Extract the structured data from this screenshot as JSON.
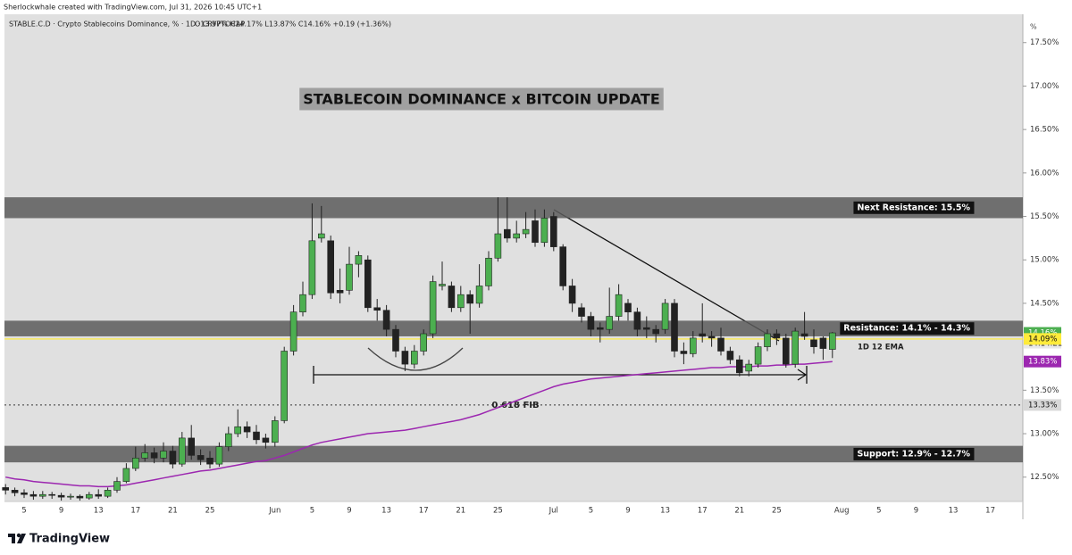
{
  "header": "Sherlockwhale created with TradingView.com, Jul 31, 2026 10:45 UTC+1",
  "footer": "TradingView",
  "chart_data": {
    "type": "candlestick",
    "symbol_text": "STABLE.C.D · Crypto Stablecoins Dominance, % · 1D · CRYPTOCAP",
    "ohlc_text": "O13.97% H14.17% L13.87% C14.16% +0.19 (+1.36%)",
    "title": "STABLECOIN DOMINANCE x BITCOIN UPDATE",
    "y_unit": "%",
    "up_color": "#4caf50",
    "down_color": "#222222",
    "categories": [
      null,
      null,
      "5",
      null,
      null,
      null,
      "9",
      null,
      null,
      null,
      "13",
      null,
      null,
      null,
      "17",
      null,
      null,
      null,
      "21",
      null,
      null,
      null,
      "25",
      null,
      null,
      null,
      null,
      null,
      null,
      "Jun",
      null,
      null,
      null,
      "5",
      null,
      null,
      null,
      "9",
      null,
      null,
      null,
      "13",
      null,
      null,
      null,
      "17",
      null,
      null,
      null,
      "21",
      null,
      null,
      null,
      "25",
      null,
      null,
      null,
      null,
      null,
      "Jul",
      null,
      null,
      null,
      "5",
      null,
      null,
      null,
      "9",
      null,
      null,
      null,
      "13",
      null,
      null,
      null,
      "17",
      null,
      null,
      null,
      "21",
      null,
      null,
      null,
      "25",
      null,
      null,
      null,
      null,
      null,
      null,
      "Aug",
      null,
      null,
      null,
      "5",
      null,
      null,
      null,
      "9",
      null,
      null,
      null,
      "13",
      null,
      null,
      null,
      "17",
      null,
      null,
      null
    ],
    "open": [
      12.38,
      12.35,
      12.32,
      12.3,
      12.28,
      12.3,
      12.29,
      12.27,
      12.28,
      12.26,
      12.3,
      12.28,
      12.35,
      12.45,
      12.6,
      12.72,
      12.78,
      12.72,
      12.8,
      12.65,
      12.95,
      12.75,
      12.72,
      12.65,
      12.85,
      13.0,
      13.08,
      13.02,
      12.95,
      12.9,
      13.15,
      13.95,
      14.4,
      14.6,
      15.25,
      15.22,
      14.65,
      14.65,
      14.95,
      15.0,
      14.45,
      14.42,
      14.2,
      13.95,
      13.8,
      13.95,
      14.15,
      14.7,
      14.7,
      14.45,
      14.6,
      14.5,
      14.7,
      15.02,
      15.35,
      15.25,
      15.3,
      15.45,
      15.2,
      15.5,
      15.15,
      14.7,
      14.45,
      14.35,
      14.22,
      14.2,
      14.35,
      14.5,
      14.4,
      14.22,
      14.2,
      14.2,
      14.5,
      13.95,
      13.92,
      14.15,
      14.12,
      14.1,
      13.95,
      13.85,
      13.72,
      13.8,
      14.0,
      14.15,
      14.1,
      13.8,
      14.15,
      14.08,
      14.1,
      13.97,
      null,
      null,
      null,
      null,
      null,
      null,
      null,
      null,
      null,
      null,
      null,
      null,
      null,
      null,
      null,
      null,
      null,
      null,
      null,
      null
    ],
    "high": [
      12.42,
      12.38,
      12.36,
      12.34,
      12.34,
      12.33,
      12.32,
      12.31,
      12.3,
      12.33,
      12.36,
      12.38,
      12.5,
      12.66,
      12.85,
      12.88,
      12.84,
      12.9,
      12.86,
      13.02,
      13.1,
      12.82,
      12.8,
      12.9,
      13.08,
      13.28,
      13.14,
      13.1,
      13.0,
      13.2,
      14.0,
      14.48,
      14.75,
      15.65,
      15.62,
      15.28,
      14.9,
      15.15,
      15.1,
      15.05,
      14.55,
      14.48,
      14.25,
      14.0,
      14.02,
      14.2,
      14.82,
      14.98,
      14.75,
      14.7,
      14.65,
      14.95,
      15.1,
      15.72,
      15.72,
      15.45,
      15.55,
      15.58,
      15.58,
      15.55,
      15.18,
      14.78,
      14.5,
      14.4,
      14.28,
      14.68,
      14.72,
      14.55,
      14.45,
      14.35,
      14.25,
      14.55,
      14.55,
      14.05,
      14.18,
      14.5,
      14.18,
      14.22,
      14.0,
      13.9,
      13.85,
      14.05,
      14.2,
      14.2,
      14.15,
      14.22,
      14.4,
      14.2,
      14.12,
      14.17,
      null,
      null,
      null,
      null,
      null,
      null,
      null,
      null,
      null,
      null,
      null,
      null,
      null,
      null,
      null,
      null,
      null,
      null,
      null,
      null
    ],
    "low": [
      12.3,
      12.28,
      12.26,
      12.24,
      12.25,
      12.25,
      12.23,
      12.24,
      12.23,
      12.24,
      12.25,
      12.26,
      12.32,
      12.43,
      12.57,
      12.68,
      12.66,
      12.67,
      12.6,
      12.62,
      12.7,
      12.64,
      12.6,
      12.62,
      12.8,
      12.96,
      12.95,
      12.88,
      12.83,
      12.85,
      13.12,
      13.9,
      14.35,
      14.55,
      15.2,
      14.55,
      14.5,
      14.6,
      14.8,
      14.4,
      14.3,
      14.12,
      13.88,
      13.72,
      13.75,
      13.9,
      14.1,
      14.65,
      14.4,
      14.4,
      14.15,
      14.45,
      14.65,
      14.98,
      15.2,
      15.2,
      15.25,
      15.15,
      15.15,
      15.1,
      14.65,
      14.4,
      14.28,
      14.12,
      14.05,
      14.15,
      14.3,
      14.3,
      14.12,
      14.1,
      14.05,
      14.15,
      13.88,
      13.8,
      13.88,
      14.05,
      14.0,
      13.9,
      13.8,
      13.66,
      13.66,
      13.76,
      13.95,
      14.02,
      13.76,
      13.76,
      14.08,
      13.92,
      13.85,
      13.87,
      null,
      null,
      null,
      null,
      null,
      null,
      null,
      null,
      null,
      null,
      null,
      null,
      null,
      null,
      null,
      null,
      null,
      null,
      null,
      null
    ],
    "close": [
      12.35,
      12.32,
      12.3,
      12.28,
      12.3,
      12.29,
      12.27,
      12.28,
      12.26,
      12.3,
      12.28,
      12.35,
      12.45,
      12.6,
      12.72,
      12.78,
      12.72,
      12.8,
      12.65,
      12.95,
      12.75,
      12.7,
      12.65,
      12.85,
      13.0,
      13.08,
      13.02,
      12.93,
      12.9,
      13.15,
      13.95,
      14.4,
      14.6,
      15.22,
      15.3,
      14.62,
      14.62,
      14.95,
      15.05,
      14.45,
      14.42,
      14.2,
      13.95,
      13.8,
      13.95,
      14.15,
      14.75,
      14.72,
      14.45,
      14.6,
      14.5,
      14.7,
      15.02,
      15.3,
      15.25,
      15.3,
      15.35,
      15.2,
      15.48,
      15.15,
      14.7,
      14.5,
      14.35,
      14.2,
      14.2,
      14.35,
      14.6,
      14.4,
      14.2,
      14.2,
      14.15,
      14.5,
      13.95,
      13.92,
      14.1,
      14.12,
      14.1,
      13.95,
      13.85,
      13.7,
      13.8,
      14.0,
      14.15,
      14.1,
      13.8,
      14.18,
      14.12,
      14.0,
      13.98,
      14.16,
      null,
      null,
      null,
      null,
      null,
      null,
      null,
      null,
      null,
      null,
      null,
      null,
      null,
      null,
      null,
      null,
      null,
      null,
      null,
      null
    ],
    "series": [
      {
        "name": "1D 12 EMA",
        "color": "#9c27b0",
        "values": [
          12.5,
          12.48,
          12.47,
          12.45,
          12.44,
          12.43,
          12.42,
          12.41,
          12.4,
          12.4,
          12.39,
          12.39,
          12.4,
          12.41,
          12.43,
          12.45,
          12.47,
          12.49,
          12.51,
          12.53,
          12.55,
          12.57,
          12.58,
          12.6,
          12.62,
          12.64,
          12.66,
          12.68,
          12.69,
          12.72,
          12.75,
          12.79,
          12.83,
          12.87,
          12.9,
          12.92,
          12.94,
          12.96,
          12.98,
          13.0,
          13.01,
          13.02,
          13.03,
          13.04,
          13.06,
          13.08,
          13.1,
          13.12,
          13.14,
          13.16,
          13.19,
          13.22,
          13.26,
          13.3,
          13.34,
          13.38,
          13.42,
          13.46,
          13.5,
          13.54,
          13.57,
          13.59,
          13.61,
          13.63,
          13.64,
          13.65,
          13.66,
          13.67,
          13.68,
          13.69,
          13.7,
          13.71,
          13.72,
          13.73,
          13.74,
          13.75,
          13.76,
          13.76,
          13.77,
          13.77,
          13.77,
          13.78,
          13.78,
          13.79,
          13.79,
          13.8,
          13.8,
          13.81,
          13.82,
          13.83,
          null,
          null,
          null,
          null,
          null,
          null,
          null,
          null,
          null,
          null,
          null,
          null,
          null,
          null,
          null,
          null,
          null,
          null,
          null,
          null
        ]
      }
    ],
    "ylim": [
      12.22,
      17.6
    ],
    "yticks": [
      {
        "value": 12.5,
        "label": "12.50%"
      },
      {
        "value": 13.0,
        "label": "13.00%"
      },
      {
        "value": 13.5,
        "label": "13.50%"
      },
      {
        "value": 14.5,
        "label": "14.50%"
      },
      {
        "value": 15.0,
        "label": "15.00%"
      },
      {
        "value": 15.5,
        "label": "15.50%"
      },
      {
        "value": 16.0,
        "label": "16.00%"
      },
      {
        "value": 16.5,
        "label": "16.50%"
      },
      {
        "value": 17.0,
        "label": "17.00%"
      },
      {
        "value": 17.5,
        "label": "17.50%"
      }
    ],
    "zones": [
      {
        "label": "Next Resistance: 15.5%",
        "from": 15.48,
        "to": 15.72
      },
      {
        "label": "Resistance: 14.1% - 14.3%",
        "from": 14.12,
        "to": 14.3
      },
      {
        "label": "Support: 12.9% - 12.7%",
        "from": 12.67,
        "to": 12.86
      }
    ],
    "fib": {
      "value": 13.33,
      "label": "0.618 FIB",
      "axis_label": "13.33%"
    },
    "price_labels": [
      {
        "value": 14.16,
        "label": "14.16%",
        "color": "#4caf50",
        "countdown": "14:14:21"
      },
      {
        "value": 14.09,
        "label": "14.09%",
        "color": "#ffeb3b"
      },
      {
        "value": 13.83,
        "label": "13.83%",
        "color": "#9c27b0"
      }
    ]
  }
}
